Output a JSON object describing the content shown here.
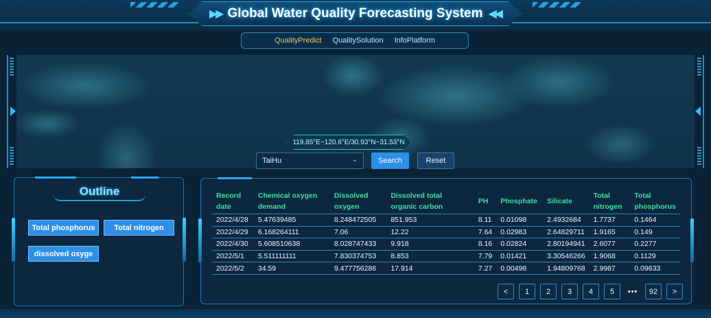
{
  "header": {
    "title": "Global Water Quality Forecasting System",
    "arrow_left": "▶▶",
    "arrow_right": "◀◀"
  },
  "nav": {
    "items": [
      {
        "label": "QualityPredict",
        "active": true
      },
      {
        "label": "QualitySolution",
        "active": false
      },
      {
        "label": "InfoPlatform",
        "active": false
      }
    ]
  },
  "map": {
    "coordinates": "119.85°E~120.6°E/30.93°N~31.53°N",
    "select_value": "TaiHu",
    "search_label": "Search",
    "reset_label": "Reset"
  },
  "outline": {
    "title": "Outline",
    "tags": [
      "Total phosphorus",
      "Total nitrogen",
      "dissolved oxyge"
    ]
  },
  "table": {
    "headers": [
      "Record date",
      "Chemical oxygen demand",
      "Dissolved oxygen",
      "Dissolved total organic carbon",
      "PH",
      "Phosphate",
      "Silicate",
      "Total nitrogen",
      "Total phosphorus"
    ],
    "rows": [
      [
        "2022/4/28",
        "5.47639485",
        "8.248472505",
        "851.953",
        "8.11",
        "0.01098",
        "2.4932684",
        "1.7737",
        "0.1464"
      ],
      [
        "2022/4/29",
        "6.168264111",
        "7.06",
        "12.22",
        "7.64",
        "0.02983",
        "2.64829711",
        "1.9165",
        "0.149"
      ],
      [
        "2022/4/30",
        "5.608510638",
        "8.028747433",
        "9.918",
        "8.16",
        "0.02824",
        "2.80194941",
        "2.6077",
        "0.2277"
      ],
      [
        "2022/5/1",
        "5.511111111",
        "7.830374753",
        "8.853",
        "7.79",
        "0.01421",
        "3.30546266",
        "1.9068",
        "0.1129"
      ],
      [
        "2022/5/2",
        "34.59",
        "9.477756286",
        "17.914",
        "7.27",
        "0.00498",
        "1.94809768",
        "2.9987",
        "0.09633"
      ]
    ]
  },
  "pager": {
    "prev": "<",
    "pages": [
      "1",
      "2",
      "3",
      "4",
      "5"
    ],
    "dots": "•••",
    "last": "92",
    "next": ">"
  },
  "colors": {
    "accent": "#2d8fe6",
    "header_text": "#3fe0a0",
    "nav_active": "#f2c14e"
  }
}
